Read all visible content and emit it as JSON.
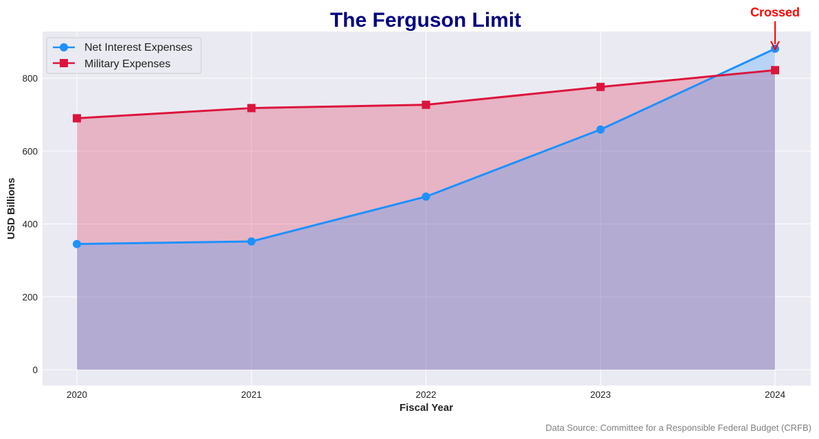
{
  "chart_data": {
    "type": "line",
    "title": "The Ferguson Limit",
    "xlabel": "Fiscal Year",
    "ylabel": "USD Billions",
    "categories": [
      "2020",
      "2021",
      "2022",
      "2023",
      "2024"
    ],
    "yticks": [
      0,
      200,
      400,
      600,
      800
    ],
    "ylim": [
      -45,
      925
    ],
    "grid": true,
    "area_fill": true,
    "legend_position": "top-left",
    "series": [
      {
        "name": "Net Interest Expenses",
        "values": [
          345,
          352,
          475,
          659,
          881
        ],
        "color": "#1e90ff",
        "marker": "circle"
      },
      {
        "name": "Military Expenses",
        "values": [
          690,
          718,
          727,
          776,
          822
        ],
        "color": "#dc143c",
        "marker": "square"
      }
    ],
    "annotation": {
      "text": "Crossed",
      "category": "2024",
      "value": 881,
      "color": "#ff0000"
    },
    "source": "Data Source: Committee for a Responsible Federal Budget (CRFB)"
  }
}
